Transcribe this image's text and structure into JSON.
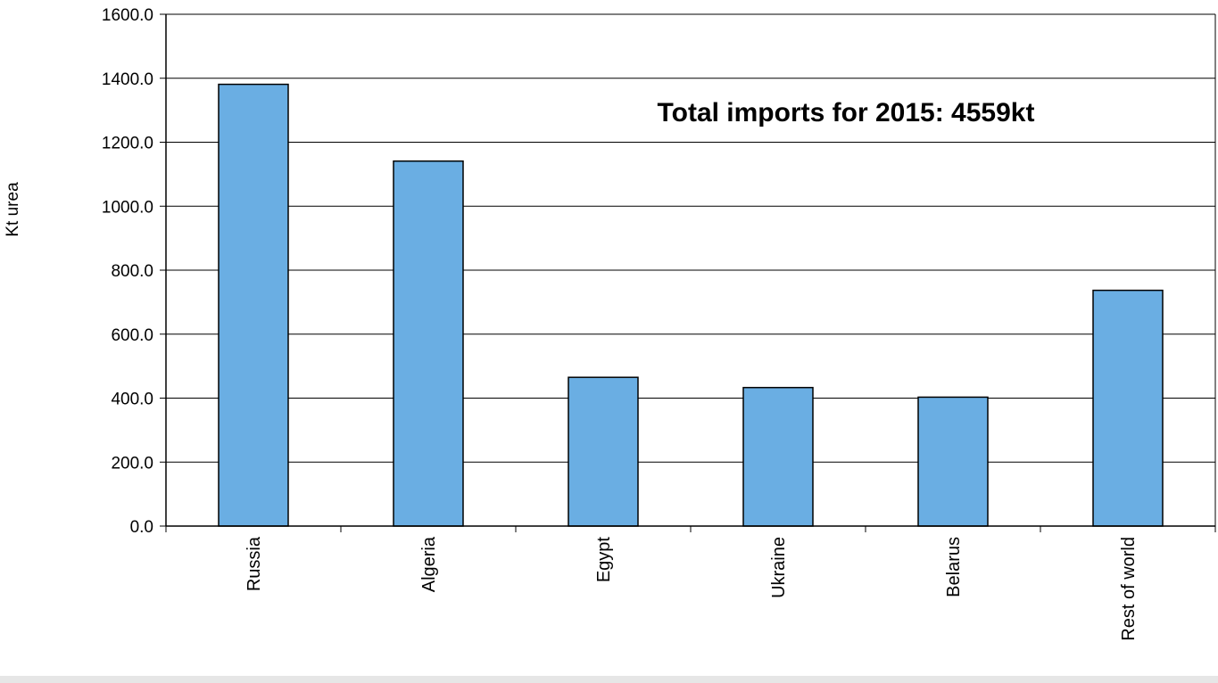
{
  "chart_data": {
    "type": "bar",
    "categories": [
      "Russia",
      "Algeria",
      "Egypt",
      "Ukraine",
      "Belarus",
      "Rest of world"
    ],
    "values": [
      1381,
      1141,
      465,
      433,
      403,
      737
    ],
    "title": "",
    "xlabel": "",
    "ylabel": "Kt urea",
    "ylim": [
      0,
      1600
    ],
    "yticks": [
      "0.0",
      "200.0",
      "400.0",
      "600.0",
      "800.0",
      "1000.0",
      "1200.0",
      "1400.0",
      "1600.0"
    ],
    "annotation": "Total imports for 2015: 4559kt",
    "bar_color": "#6aaee3",
    "grid": true,
    "legend": "none"
  }
}
